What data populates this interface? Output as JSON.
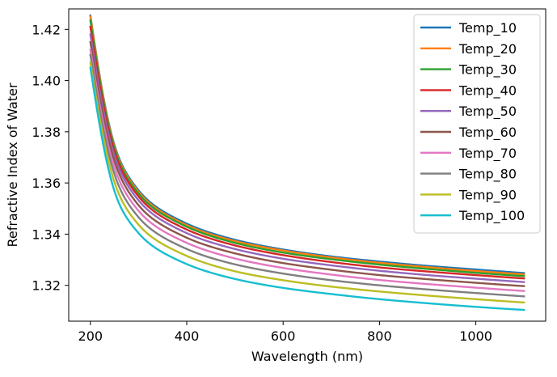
{
  "chart_data": {
    "type": "line",
    "title": "",
    "xlabel": "Wavelength (nm)",
    "ylabel": "Refractive Index of Water",
    "xlim": [
      155,
      1145
    ],
    "ylim": [
      1.306,
      1.428
    ],
    "xticks": [
      200,
      400,
      600,
      800,
      1000
    ],
    "yticks": [
      1.32,
      1.34,
      1.36,
      1.38,
      1.4,
      1.42
    ],
    "xtick_labels": [
      "200",
      "400",
      "600",
      "800",
      "1000"
    ],
    "ytick_labels": [
      "1.32",
      "1.34",
      "1.36",
      "1.38",
      "1.40",
      "1.42"
    ],
    "grid": false,
    "legend_position": "upper right",
    "x": [
      200,
      250,
      300,
      400,
      500,
      600,
      700,
      800,
      900,
      1000,
      1100
    ],
    "series": [
      {
        "name": "Temp_10",
        "color": "#1f77b4",
        "values": [
          1.4254,
          1.3748,
          1.3571,
          1.3441,
          1.3378,
          1.334,
          1.3313,
          1.3293,
          1.3276,
          1.3262,
          1.3248
        ]
      },
      {
        "name": "Temp_20",
        "color": "#ff7f0e",
        "values": [
          1.425,
          1.3742,
          1.3565,
          1.3435,
          1.3373,
          1.3336,
          1.3309,
          1.3288,
          1.3271,
          1.3256,
          1.3243
        ]
      },
      {
        "name": "Temp_30",
        "color": "#2ca02c",
        "values": [
          1.4235,
          1.3735,
          1.3558,
          1.3429,
          1.3366,
          1.3328,
          1.3302,
          1.3281,
          1.3264,
          1.3249,
          1.3236
        ]
      },
      {
        "name": "Temp_40",
        "color": "#d62728",
        "values": [
          1.421,
          1.3723,
          1.3547,
          1.3418,
          1.3356,
          1.3318,
          1.3291,
          1.327,
          1.3254,
          1.324,
          1.3227
        ]
      },
      {
        "name": "Temp_50",
        "color": "#9467bd",
        "values": [
          1.418,
          1.3705,
          1.3532,
          1.3404,
          1.3342,
          1.3304,
          1.3278,
          1.3257,
          1.324,
          1.3226,
          1.3213
        ]
      },
      {
        "name": "Temp_60",
        "color": "#8c564b",
        "values": [
          1.415,
          1.3685,
          1.3513,
          1.3386,
          1.3325,
          1.3287,
          1.3261,
          1.324,
          1.3224,
          1.321,
          1.3197
        ]
      },
      {
        "name": "Temp_70",
        "color": "#e377c2",
        "values": [
          1.412,
          1.366,
          1.3491,
          1.3366,
          1.3305,
          1.3268,
          1.3242,
          1.3221,
          1.3205,
          1.3191,
          1.3178
        ]
      },
      {
        "name": "Temp_80",
        "color": "#7f7f7f",
        "values": [
          1.41,
          1.3634,
          1.3466,
          1.3342,
          1.3282,
          1.3246,
          1.322,
          1.32,
          1.3184,
          1.317,
          1.3157
        ]
      },
      {
        "name": "Temp_90",
        "color": "#bcbd22",
        "values": [
          1.407,
          1.3603,
          1.3437,
          1.3315,
          1.3255,
          1.322,
          1.3195,
          1.3176,
          1.316,
          1.3146,
          1.3133
        ]
      },
      {
        "name": "Temp_100",
        "color": "#17becf",
        "values": [
          1.405,
          1.3568,
          1.3404,
          1.3283,
          1.3225,
          1.319,
          1.3166,
          1.3146,
          1.313,
          1.3116,
          1.3104
        ]
      }
    ]
  }
}
